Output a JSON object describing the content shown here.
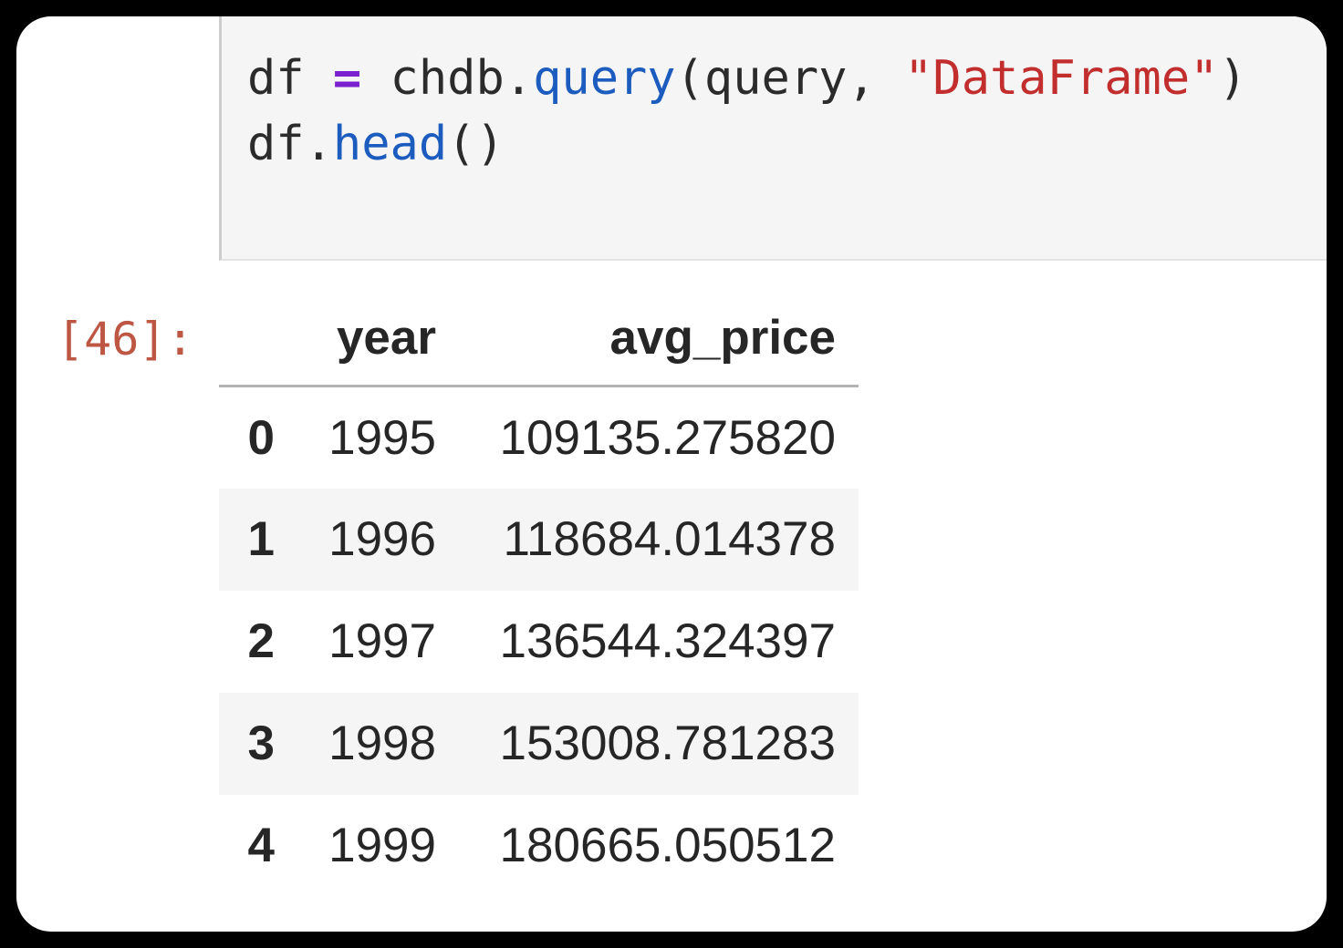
{
  "page": {
    "surface_color": "#ffffff",
    "backdrop_color": "#000000"
  },
  "code_cell": {
    "background": "#f5f5f5",
    "border_color": "#cccccc",
    "lines": [
      [
        {
          "text": "df ",
          "type": "plain"
        },
        {
          "text": "=",
          "type": "operator"
        },
        {
          "text": " chdb.",
          "type": "plain"
        },
        {
          "text": "query",
          "type": "function"
        },
        {
          "text": "(query, ",
          "type": "plain"
        },
        {
          "text": "\"DataFrame\"",
          "type": "string"
        },
        {
          "text": ")",
          "type": "plain"
        }
      ],
      [
        {
          "text": "df.",
          "type": "plain"
        },
        {
          "text": "head",
          "type": "function"
        },
        {
          "text": "()",
          "type": "plain"
        }
      ]
    ],
    "token_colors": {
      "plain": "#2b2b2b",
      "operator": "#7b20ce",
      "function": "#1b5cbe",
      "string": "#c22e2e"
    }
  },
  "output": {
    "prompt": "[46]:",
    "prompt_color": "#bd5743",
    "table": {
      "columns": [
        "year",
        "avg_price"
      ],
      "rows": [
        [
          "0",
          "1995",
          "109135.275820"
        ],
        [
          "1",
          "1996",
          "118684.014378"
        ],
        [
          "2",
          "1997",
          "136544.324397"
        ],
        [
          "3",
          "1998",
          "153008.781283"
        ],
        [
          "4",
          "1999",
          "180665.050512"
        ]
      ],
      "stripe_color": "#f5f5f5",
      "header_rule_color": "#b3b3b3"
    }
  }
}
